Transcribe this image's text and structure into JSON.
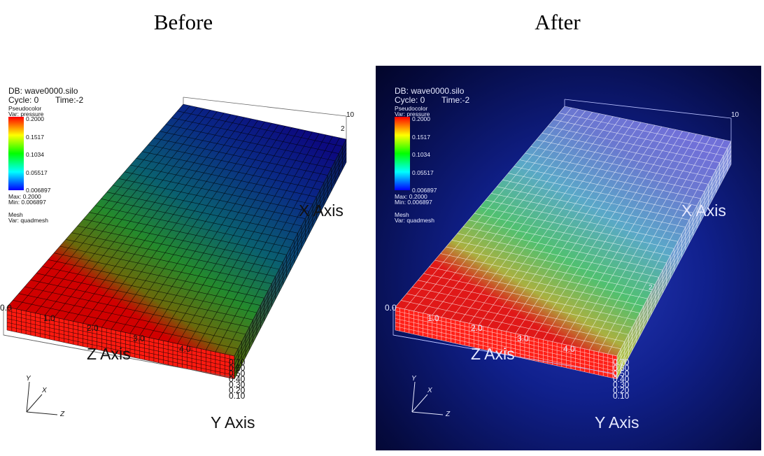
{
  "headings": {
    "before": "Before",
    "after": "After"
  },
  "info": {
    "db": "DB: wave0000.silo",
    "cycle": "Cycle: 0",
    "time": "Time:-2",
    "plot_type": "Pseudocolor",
    "plot_var": "Var: pressure",
    "legend_ticks": [
      "0.2000",
      "0.1517",
      "0.1034",
      "0.05517",
      "0.006897"
    ],
    "max": "Max: 0.2000",
    "min": "Min: 0.006897",
    "mesh_label": "Mesh",
    "mesh_var": "Var: quadmesh"
  },
  "axes": {
    "x_title": "X Axis",
    "y_title": "Y Axis",
    "z_title": "Z Axis",
    "z_ticks": [
      "0.0",
      "1.0",
      "2.0",
      "3.0",
      "4.0"
    ],
    "x_corner_tick": "10",
    "x_mid_tick": "2",
    "y_ticks": [
      "0.70",
      "0.60",
      "0.50",
      "0.40",
      "0.30",
      "0.20",
      "0.10"
    ]
  },
  "triad": {
    "x": "X",
    "y": "Y",
    "z": "Z"
  },
  "colors": {
    "after_background": "#0d1a80",
    "top_near": "#d40000",
    "top_far": "#100a80",
    "front_face": "#ff1a10",
    "mesh_before": "#000000",
    "mesh_after": "#ffffff"
  }
}
